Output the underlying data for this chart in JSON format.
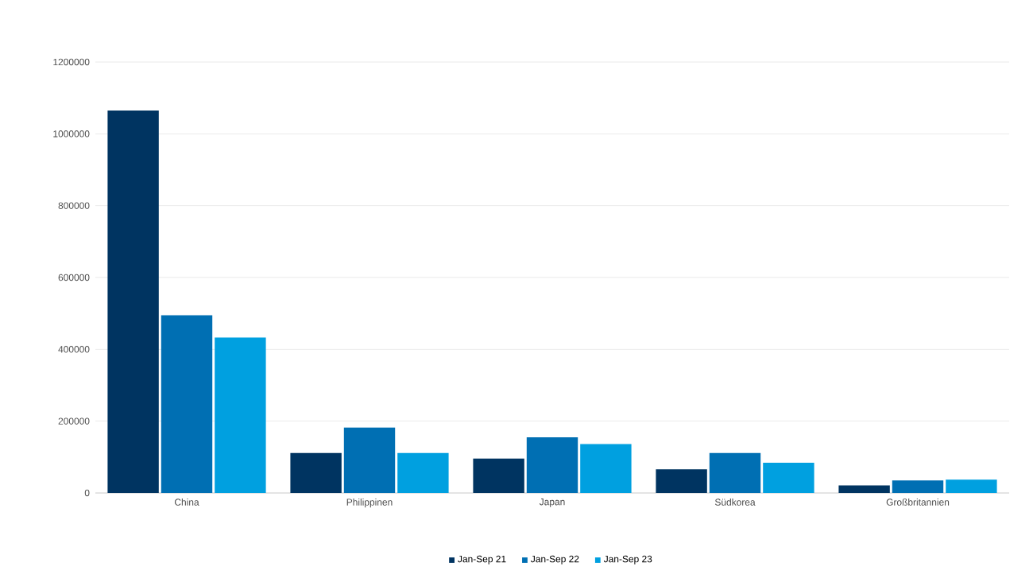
{
  "chart_data": {
    "type": "bar",
    "categories": [
      "China",
      "Philippinen",
      "Japan",
      "Südkorea",
      "Großbritannien"
    ],
    "series": [
      {
        "name": "Jan-Sep 21",
        "color": "#003461",
        "values": [
          1065000,
          111000,
          96000,
          66000,
          21000
        ]
      },
      {
        "name": "Jan-Sep 22",
        "color": "#006fb3",
        "values": [
          495000,
          182000,
          155000,
          111000,
          35000
        ]
      },
      {
        "name": "Jan-Sep 23",
        "color": "#00a0e0",
        "values": [
          433000,
          111000,
          136000,
          84000,
          37000
        ]
      }
    ],
    "ylim": [
      0,
      1200000
    ],
    "yticks": [
      0,
      200000,
      400000,
      600000,
      800000,
      1000000,
      1200000
    ],
    "grid": "y",
    "legend": "bottom"
  }
}
